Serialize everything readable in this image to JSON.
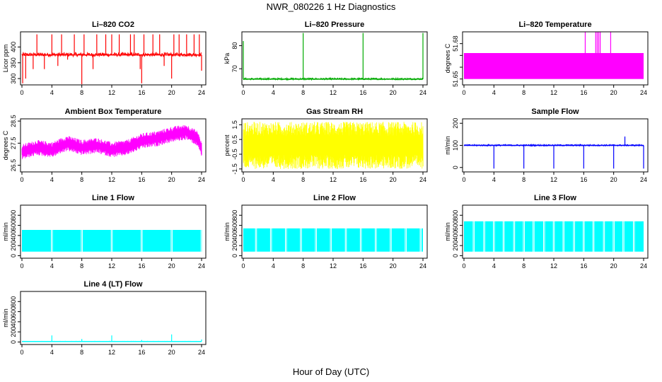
{
  "page": {
    "title": "NWR_080226  1 Hz Diagnostics",
    "x_title": "Hour of Day (UTC)"
  },
  "chart_data": [
    {
      "type": "line",
      "title": "Li–820 CO2",
      "ylabel": "Licor ppm",
      "color": "#ff0000",
      "xlim": [
        0,
        24
      ],
      "ylim": [
        280,
        448
      ],
      "xticks": [
        0,
        4,
        8,
        12,
        16,
        20,
        24
      ],
      "yticks": [
        300,
        350,
        400
      ],
      "series": [
        {
          "baseline": 375,
          "band": [
            370,
            382
          ],
          "spikes": [
            [
              0.1,
              285
            ],
            [
              0.5,
              300
            ],
            [
              1.5,
              330
            ],
            [
              2.0,
              440
            ],
            [
              3.0,
              330
            ],
            [
              4.0,
              440
            ],
            [
              4.8,
              340
            ],
            [
              5.3,
              440
            ],
            [
              6.1,
              360
            ],
            [
              7.0,
              440
            ],
            [
              8.0,
              282
            ],
            [
              8.3,
              440
            ],
            [
              9.5,
              330
            ],
            [
              10.0,
              440
            ],
            [
              11.2,
              440
            ],
            [
              12.0,
              440
            ],
            [
              13.0,
              440
            ],
            [
              14.5,
              440
            ],
            [
              15.0,
              440
            ],
            [
              15.8,
              330
            ],
            [
              16.0,
              285
            ],
            [
              16.3,
              440
            ],
            [
              17.5,
              440
            ],
            [
              18.4,
              440
            ],
            [
              19.0,
              340
            ],
            [
              20.0,
              300
            ],
            [
              20.3,
              440
            ],
            [
              21.0,
              440
            ],
            [
              22.0,
              440
            ],
            [
              23.0,
              440
            ],
            [
              23.7,
              440
            ],
            [
              24.0,
              325
            ]
          ]
        }
      ]
    },
    {
      "type": "line",
      "title": "Li–820 Pressure",
      "ylabel": "kPa",
      "color": "#00aa00",
      "xlim": [
        0,
        24
      ],
      "ylim": [
        63,
        86
      ],
      "xticks": [
        0,
        4,
        8,
        12,
        16,
        20,
        24
      ],
      "yticks": [
        70,
        80
      ],
      "series": [
        {
          "baseline": 65.5,
          "band": [
            65.2,
            66.0
          ],
          "spikes": [
            [
              0.0,
              82
            ],
            [
              8.0,
              85.5
            ],
            [
              16.0,
              85.5
            ],
            [
              24.0,
              85.5
            ]
          ]
        }
      ]
    },
    {
      "type": "area",
      "title": "Li–820 Temperature",
      "ylabel": "degrees C",
      "color": "#ff00ff",
      "xlim": [
        0,
        24
      ],
      "ylim": [
        51.645,
        51.69
      ],
      "xticks": [
        0,
        4,
        8,
        12,
        16,
        20,
        24
      ],
      "yticks": [
        51.65,
        51.66,
        51.67,
        51.68
      ],
      "ytick_labels": [
        "51.65",
        "",
        "",
        "51.68"
      ],
      "series": [
        {
          "band": [
            51.65,
            51.672
          ],
          "spikes": [
            [
              16.2,
              51.69
            ],
            [
              17.6,
              51.69
            ],
            [
              17.8,
              51.69
            ],
            [
              18.0,
              51.69
            ],
            [
              18.2,
              51.69
            ],
            [
              19.6,
              51.69
            ]
          ]
        }
      ]
    },
    {
      "type": "line",
      "title": "Ambient Box Temperature",
      "ylabel": "degrees C",
      "color": "#ff00ff",
      "xlim": [
        0,
        24
      ],
      "ylim": [
        26.2,
        28.6
      ],
      "xticks": [
        0,
        4,
        8,
        12,
        16,
        20,
        24
      ],
      "yticks": [
        26.5,
        27.5,
        28.5
      ],
      "series": [
        {
          "mid": [
            [
              0,
              27.1
            ],
            [
              2,
              27.3
            ],
            [
              4,
              27.2
            ],
            [
              6,
              27.5
            ],
            [
              8,
              27.3
            ],
            [
              10,
              27.4
            ],
            [
              12,
              27.2
            ],
            [
              14,
              27.3
            ],
            [
              16,
              27.6
            ],
            [
              18,
              27.7
            ],
            [
              20,
              27.9
            ],
            [
              22,
              28.0
            ],
            [
              23.5,
              27.7
            ],
            [
              24,
              27.2
            ]
          ],
          "amp": 0.35
        }
      ]
    },
    {
      "type": "line",
      "title": "Gas Stream RH",
      "ylabel": "percent",
      "color": "#ffff00",
      "xlim": [
        0,
        24
      ],
      "ylim": [
        -1.7,
        1.9
      ],
      "xticks": [
        0,
        4,
        8,
        12,
        16,
        20,
        24
      ],
      "yticks": [
        -1.5,
        -0.5,
        0.5,
        1.5
      ],
      "series": [
        {
          "mid": [
            [
              0,
              0.1
            ],
            [
              24,
              0.1
            ]
          ],
          "amp": 1.6
        }
      ]
    },
    {
      "type": "line",
      "title": "Sample Flow",
      "ylabel": "ml/min",
      "color": "#0000ff",
      "xlim": [
        0,
        24
      ],
      "ylim": [
        -20,
        220
      ],
      "xticks": [
        0,
        4,
        8,
        12,
        16,
        20,
        24
      ],
      "yticks": [
        0,
        100,
        200
      ],
      "series": [
        {
          "baseline": 100,
          "band": [
            97,
            104
          ],
          "spikes": [
            [
              4.0,
              -5
            ],
            [
              8.0,
              -5
            ],
            [
              12.0,
              -5
            ],
            [
              16.0,
              -5
            ],
            [
              20.0,
              -5
            ],
            [
              21.5,
              140
            ],
            [
              24.0,
              -5
            ]
          ]
        }
      ]
    },
    {
      "type": "area",
      "title": "Line 1 Flow",
      "ylabel": "ml/min",
      "color": "#00ffff",
      "xlim": [
        0,
        24
      ],
      "ylim": [
        -50,
        1000
      ],
      "xticks": [
        0,
        4,
        8,
        12,
        16,
        20,
        24
      ],
      "yticks": [
        0,
        200,
        400,
        600,
        800
      ],
      "series": [
        {
          "band": [
            80,
            510
          ],
          "gaps": [
            4,
            8,
            12,
            16,
            20,
            24
          ]
        }
      ]
    },
    {
      "type": "area",
      "title": "Line 2 Flow",
      "ylabel": "ml/min",
      "color": "#00ffff",
      "xlim": [
        0,
        24
      ],
      "ylim": [
        -50,
        1000
      ],
      "xticks": [
        0,
        4,
        8,
        12,
        16,
        20,
        24
      ],
      "yticks": [
        0,
        200,
        400,
        600,
        800
      ],
      "series": [
        {
          "band": [
            80,
            540
          ],
          "gaps": [
            1.7,
            3.7,
            5.7,
            7.7,
            9.7,
            11.7,
            13.7,
            15.7,
            17.7,
            19.7,
            21.7,
            23.7
          ]
        }
      ]
    },
    {
      "type": "area",
      "title": "Line 3 Flow",
      "ylabel": "ml/min",
      "color": "#00ffff",
      "xlim": [
        0,
        24
      ],
      "ylim": [
        -50,
        1000
      ],
      "xticks": [
        0,
        4,
        8,
        12,
        16,
        20,
        24
      ],
      "yticks": [
        0,
        200,
        400,
        600,
        800
      ],
      "series": [
        {
          "band": [
            80,
            680
          ],
          "gaps": [
            1.3,
            2.7,
            4.0,
            5.3,
            6.7,
            8.0,
            9.3,
            10.7,
            12.0,
            13.3,
            14.7,
            16.0,
            17.3,
            18.7,
            20.0,
            21.3,
            22.7
          ]
        }
      ]
    },
    {
      "type": "line",
      "title": "Line 4 (LT) Flow",
      "ylabel": "ml/min",
      "color": "#00ffff",
      "xlim": [
        0,
        24
      ],
      "ylim": [
        -50,
        1000
      ],
      "xticks": [
        0,
        4,
        8,
        12,
        16,
        20,
        24
      ],
      "yticks": [
        0,
        200,
        400,
        600,
        800
      ],
      "series": [
        {
          "baseline": 10,
          "band": [
            5,
            15
          ],
          "spikes": [
            [
              4.0,
              130
            ],
            [
              8.0,
              60
            ],
            [
              12.0,
              130
            ],
            [
              16.0,
              40
            ],
            [
              20.0,
              150
            ],
            [
              24.0,
              50
            ]
          ]
        }
      ]
    }
  ]
}
